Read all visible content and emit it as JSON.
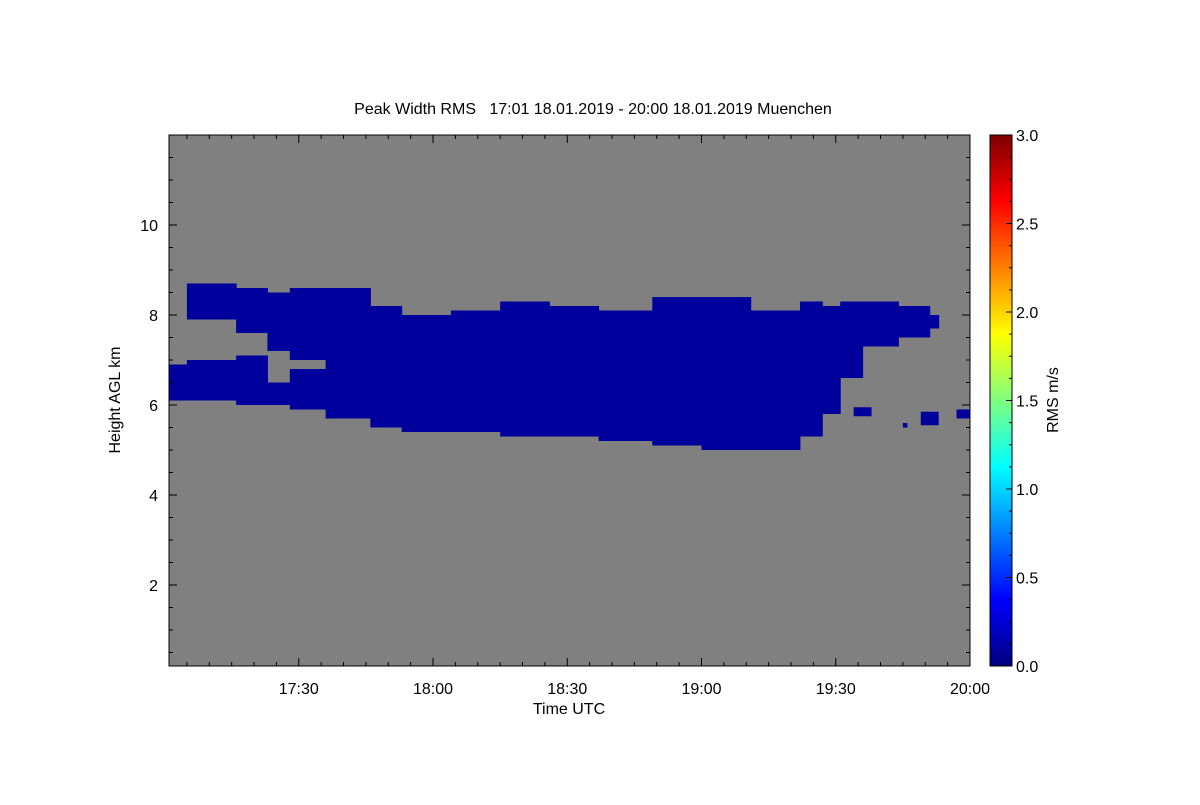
{
  "chart_data": {
    "type": "heatmap",
    "title": "Peak Width RMS   17:01 18.01.2019 - 20:00 18.01.2019 Muenchen",
    "xlabel": "Time UTC",
    "ylabel": "Height AGL km",
    "colorbar_label": "RMS m/s",
    "xlim_minutes_after_1701": [
      0,
      179
    ],
    "x_ticks": [
      {
        "label": "17:30",
        "minute": 29
      },
      {
        "label": "18:00",
        "minute": 59
      },
      {
        "label": "18:30",
        "minute": 89
      },
      {
        "label": "19:00",
        "minute": 119
      },
      {
        "label": "19:30",
        "minute": 149
      },
      {
        "label": "20:00",
        "minute": 179
      }
    ],
    "ylim": [
      0.2,
      12
    ],
    "y_ticks": [
      {
        "label": "2",
        "value": 2
      },
      {
        "label": "4",
        "value": 4
      },
      {
        "label": "6",
        "value": 6
      },
      {
        "label": "8",
        "value": 8
      },
      {
        "label": "10",
        "value": 10
      }
    ],
    "colorbar_range": [
      0,
      3
    ],
    "colorbar_ticks": [
      {
        "label": "0.0",
        "value": 0
      },
      {
        "label": "0.5",
        "value": 0.5
      },
      {
        "label": "1.0",
        "value": 1
      },
      {
        "label": "1.5",
        "value": 1.5
      },
      {
        "label": "2.0",
        "value": 2
      },
      {
        "label": "2.5",
        "value": 2.5
      },
      {
        "label": "3.0",
        "value": 3
      }
    ],
    "colormap": [
      "#00007f",
      "#0000ff",
      "#007fff",
      "#00ffff",
      "#7fff7f",
      "#ffff00",
      "#ff7f00",
      "#ff0000",
      "#7f0000"
    ],
    "background_color": "#808080",
    "cloud_value_rms": 0.1,
    "cloud_color": "#00009c",
    "cloud_columns": [
      {
        "t": 0,
        "layers": [
          [
            6.1,
            6.9
          ]
        ]
      },
      {
        "t": 4,
        "layers": [
          [
            6.1,
            7.0
          ],
          [
            7.9,
            8.7
          ]
        ]
      },
      {
        "t": 15,
        "layers": [
          [
            6.0,
            7.1
          ],
          [
            7.6,
            8.6
          ]
        ]
      },
      {
        "t": 22,
        "layers": [
          [
            6.0,
            6.5
          ],
          [
            7.2,
            8.5
          ]
        ]
      },
      {
        "t": 27,
        "layers": [
          [
            5.9,
            6.8
          ],
          [
            7.0,
            8.6
          ]
        ]
      },
      {
        "t": 35,
        "layers": [
          [
            5.7,
            8.6
          ]
        ]
      },
      {
        "t": 45,
        "layers": [
          [
            5.5,
            8.2
          ]
        ]
      },
      {
        "t": 52,
        "layers": [
          [
            5.4,
            8.0
          ]
        ]
      },
      {
        "t": 63,
        "layers": [
          [
            5.4,
            8.1
          ]
        ]
      },
      {
        "t": 74,
        "layers": [
          [
            5.3,
            8.3
          ]
        ]
      },
      {
        "t": 85,
        "layers": [
          [
            5.3,
            8.2
          ]
        ]
      },
      {
        "t": 96,
        "layers": [
          [
            5.2,
            8.1
          ]
        ]
      },
      {
        "t": 108,
        "layers": [
          [
            5.1,
            8.4
          ]
        ]
      },
      {
        "t": 119,
        "layers": [
          [
            5.0,
            8.4
          ]
        ]
      },
      {
        "t": 130,
        "layers": [
          [
            5.0,
            8.1
          ]
        ]
      },
      {
        "t": 141,
        "layers": [
          [
            5.3,
            8.3
          ]
        ]
      },
      {
        "t": 146,
        "layers": [
          [
            5.8,
            8.2
          ]
        ]
      },
      {
        "t": 150,
        "layers": [
          [
            6.6,
            8.3
          ]
        ]
      },
      {
        "t": 155,
        "layers": [
          [
            7.3,
            8.3
          ]
        ]
      },
      {
        "t": 163,
        "layers": [
          [
            7.5,
            8.2
          ]
        ]
      },
      {
        "t": 170,
        "layers": [
          [
            7.7,
            8.0
          ]
        ]
      },
      {
        "t": 172,
        "layers": []
      }
    ],
    "cloud_blobs": [
      {
        "t": 153,
        "h": 5.85,
        "dt": 4,
        "dh": 0.2
      },
      {
        "t": 164,
        "h": 5.55,
        "dt": 1,
        "dh": 0.1
      },
      {
        "t": 168,
        "h": 5.7,
        "dt": 4,
        "dh": 0.3
      },
      {
        "t": 176,
        "h": 5.8,
        "dt": 3,
        "dh": 0.2
      }
    ]
  }
}
